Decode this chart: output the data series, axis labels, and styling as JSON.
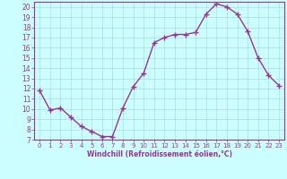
{
  "x": [
    0,
    1,
    2,
    3,
    4,
    5,
    6,
    7,
    8,
    9,
    10,
    11,
    12,
    13,
    14,
    15,
    16,
    17,
    18,
    19,
    20,
    21,
    22,
    23
  ],
  "y": [
    11.8,
    9.9,
    10.1,
    9.2,
    8.3,
    7.8,
    7.3,
    7.3,
    10.1,
    12.2,
    13.5,
    16.5,
    17.0,
    17.3,
    17.3,
    17.5,
    19.3,
    20.3,
    20.0,
    19.3,
    17.6,
    15.0,
    13.3,
    12.3
  ],
  "line_color": "#993399",
  "marker": "+",
  "marker_size": 4,
  "bg_color": "#ccffff",
  "grid_color": "#aadddd",
  "xlabel": "Windchill (Refroidissement éolien,°C)",
  "xlim": [
    -0.5,
    23.5
  ],
  "ylim": [
    7,
    20.5
  ],
  "yticks": [
    7,
    8,
    9,
    10,
    11,
    12,
    13,
    14,
    15,
    16,
    17,
    18,
    19,
    20
  ],
  "xticks": [
    0,
    1,
    2,
    3,
    4,
    5,
    6,
    7,
    8,
    9,
    10,
    11,
    12,
    13,
    14,
    15,
    16,
    17,
    18,
    19,
    20,
    21,
    22,
    23
  ],
  "tick_color": "#993399",
  "label_color": "#993399",
  "spine_color": "#993399",
  "tick_fontsize": 5.0,
  "xlabel_fontsize": 5.5,
  "linewidth": 1.0
}
